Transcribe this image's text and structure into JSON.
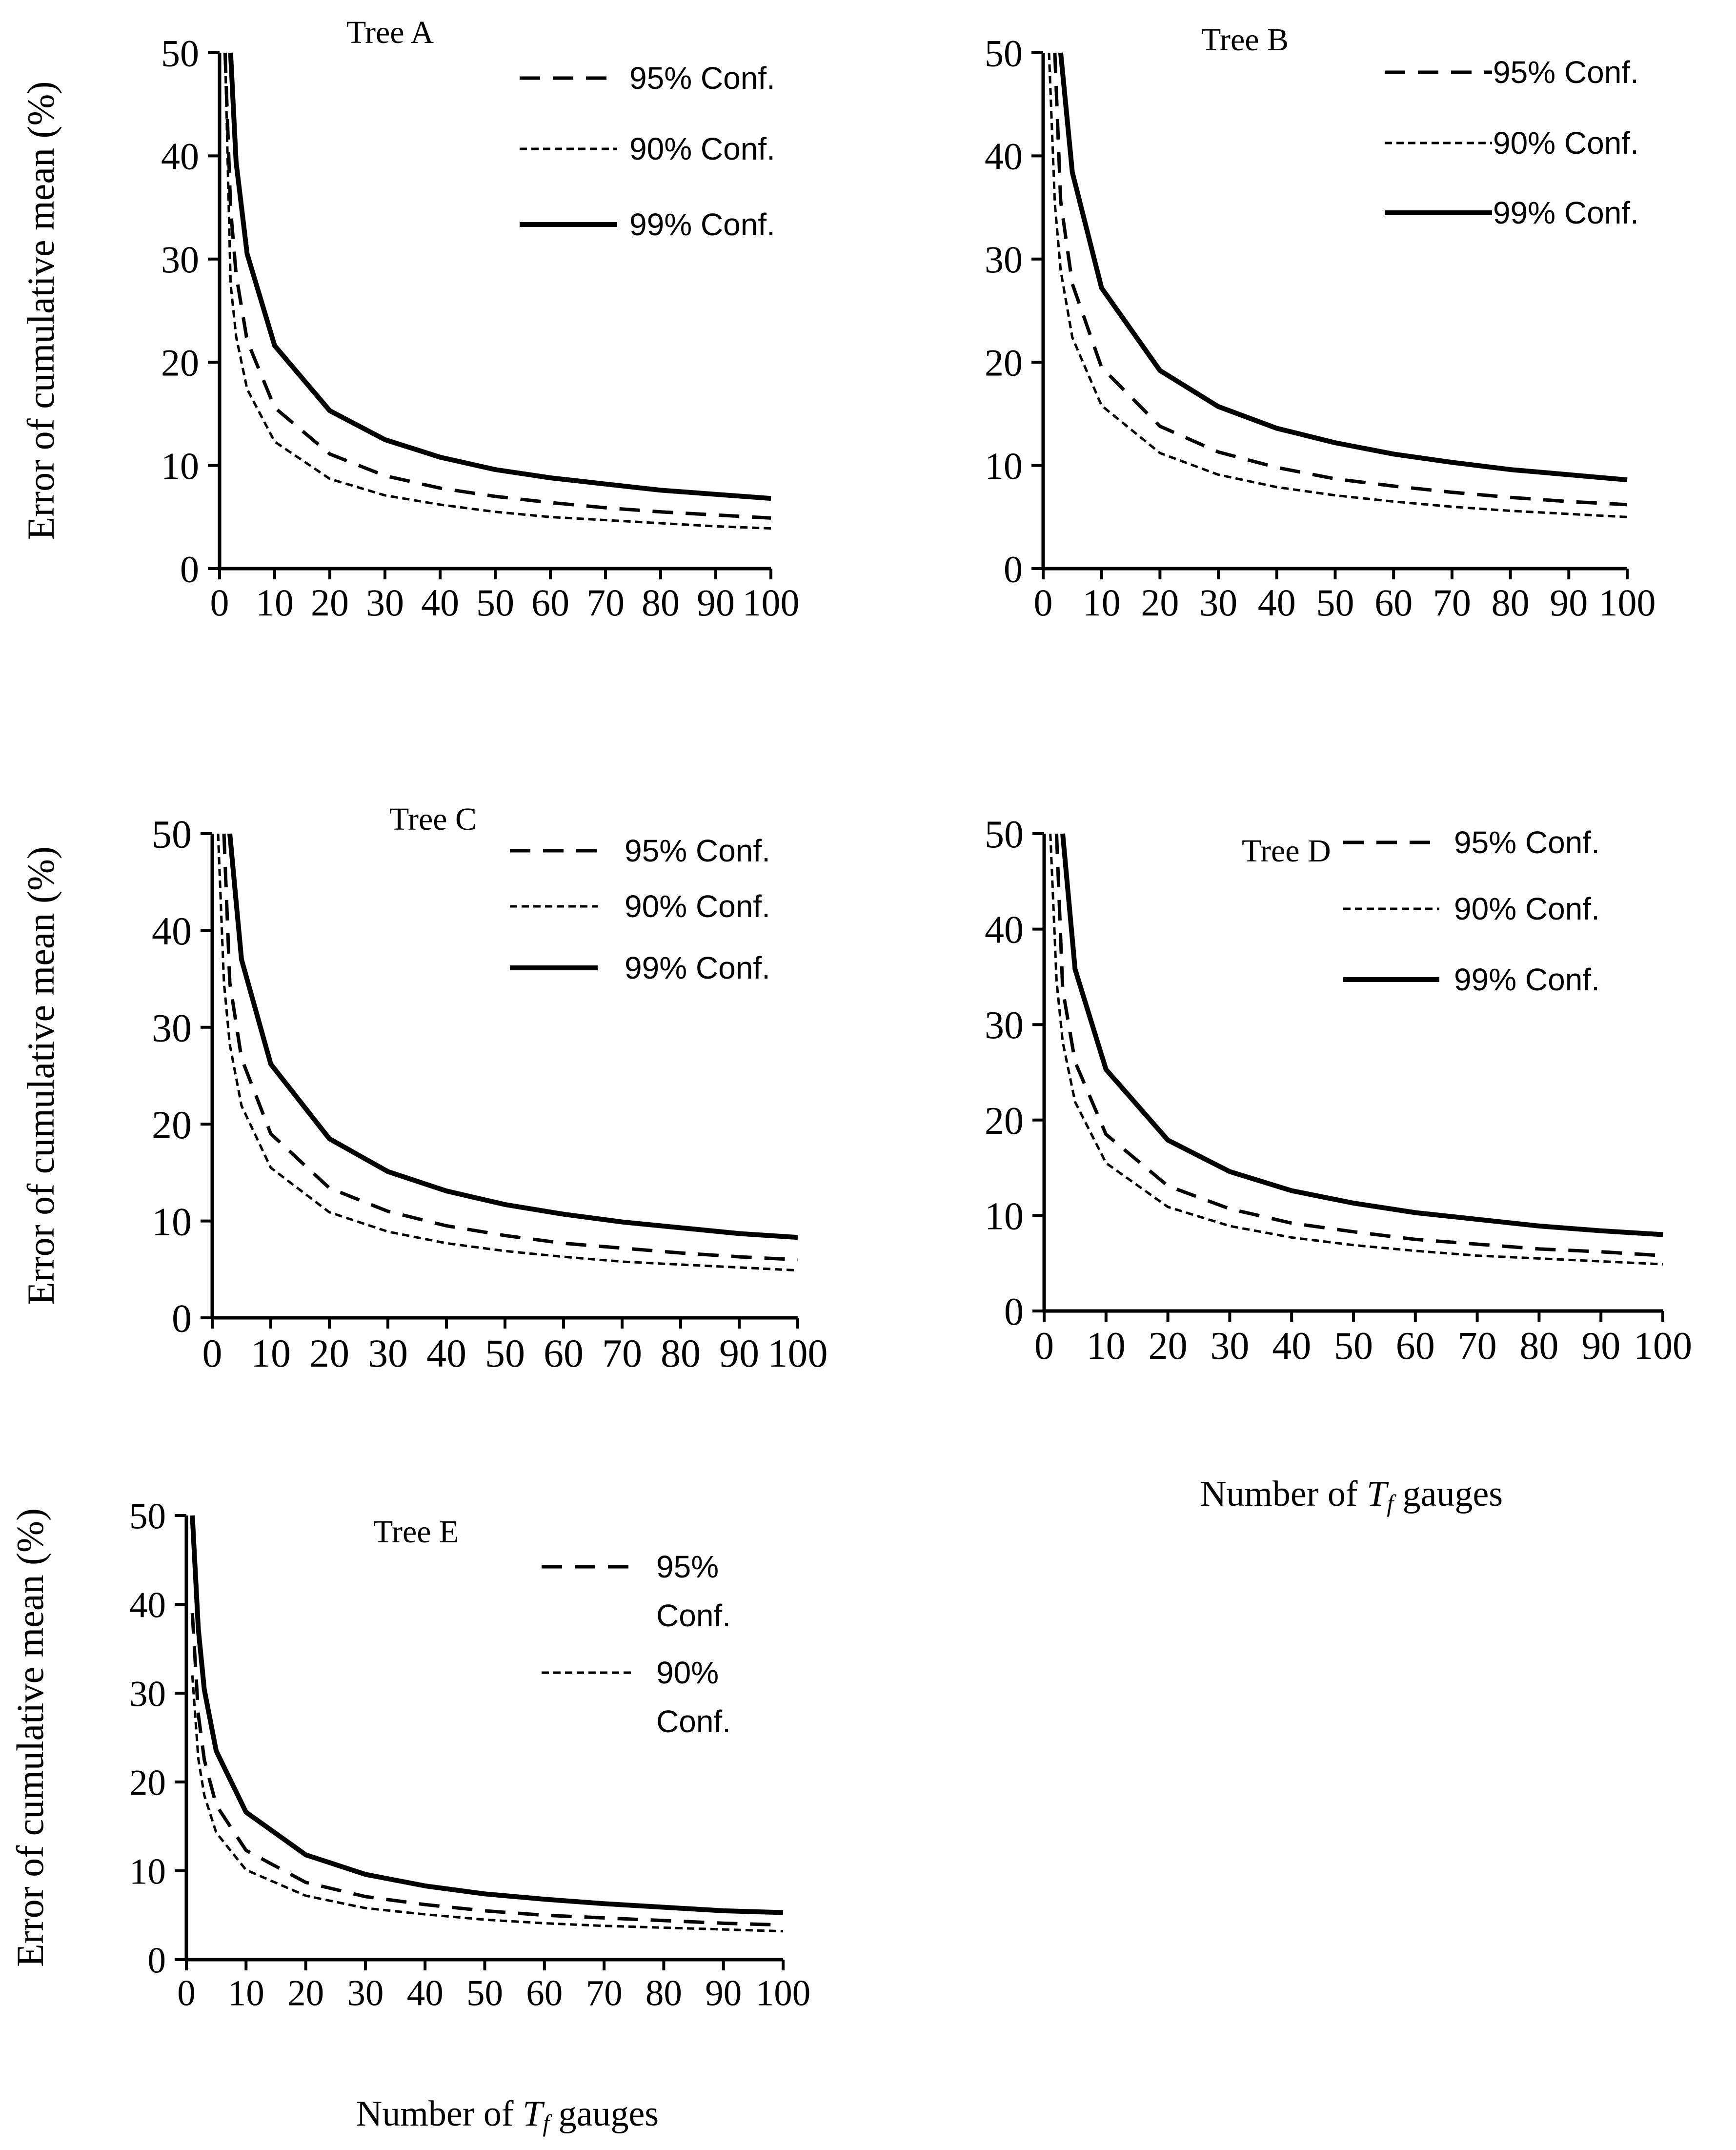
{
  "figure": {
    "xlabel_right_prefix": "Number of ",
    "xlabel_right_var": "T",
    "xlabel_right_sub": "f",
    "xlabel_right_suffix": " gauges",
    "xlabel_bottom_prefix": "Number of ",
    "xlabel_bottom_var": "T",
    "xlabel_bottom_sub": "f",
    "xlabel_bottom_suffix": " gauges"
  },
  "legend_labels": {
    "c95": "95% Conf.",
    "c90": "90% Conf.",
    "c99": "99% Conf.",
    "c95_line1": "95%",
    "c95_line2": "Conf.",
    "c90_line1": "90%",
    "c90_line2": "Conf."
  },
  "chart_data": [
    {
      "type": "line",
      "title": "Tree A",
      "ylabel": "Error of cumulative mean (%)",
      "xlabel": "",
      "xlim": [
        0,
        100
      ],
      "ylim": [
        0,
        50
      ],
      "xticks": [
        "0",
        "10",
        "20",
        "30",
        "40",
        "50",
        "60",
        "70",
        "80",
        "90",
        "100"
      ],
      "yticks": [
        "0",
        "10",
        "20",
        "30",
        "40",
        "50"
      ],
      "legend": "top-right",
      "series": [
        {
          "name": "95% Conf.",
          "style": "dashed",
          "x": [
            1,
            2,
            3,
            5,
            10,
            20,
            30,
            40,
            50,
            60,
            70,
            80,
            90,
            100
          ],
          "y": [
            50,
            34.9,
            28.5,
            22.1,
            15.6,
            11.1,
            9.0,
            7.8,
            7.0,
            6.4,
            5.9,
            5.5,
            5.2,
            4.9
          ]
        },
        {
          "name": "90% Conf.",
          "style": "dotted",
          "x": [
            1,
            2,
            3,
            5,
            10,
            20,
            30,
            40,
            50,
            60,
            70,
            80,
            90,
            100
          ],
          "y": [
            50,
            27.6,
            22.5,
            17.4,
            12.3,
            8.7,
            7.1,
            6.2,
            5.5,
            5.0,
            4.7,
            4.4,
            4.1,
            3.9
          ]
        },
        {
          "name": "99% Conf.",
          "style": "solid",
          "x": [
            2,
            3,
            5,
            10,
            20,
            30,
            40,
            50,
            60,
            70,
            80,
            90,
            100
          ],
          "y": [
            50,
            39.4,
            30.5,
            21.6,
            15.3,
            12.5,
            10.8,
            9.6,
            8.8,
            8.2,
            7.6,
            7.2,
            6.8
          ]
        }
      ]
    },
    {
      "type": "line",
      "title": "Tree B",
      "ylabel": "",
      "xlabel": "",
      "xlim": [
        0,
        100
      ],
      "ylim": [
        0,
        50
      ],
      "xticks": [
        "0",
        "10",
        "20",
        "30",
        "40",
        "50",
        "60",
        "70",
        "80",
        "90",
        "100"
      ],
      "yticks": [
        "0",
        "10",
        "20",
        "30",
        "40",
        "50"
      ],
      "legend": "top-right",
      "series": [
        {
          "name": "95% Conf.",
          "style": "dashed",
          "x": [
            2,
            3,
            5,
            10,
            20,
            30,
            40,
            50,
            60,
            70,
            80,
            90,
            100
          ],
          "y": [
            50,
            35.6,
            27.6,
            19.5,
            13.8,
            11.3,
            9.8,
            8.7,
            8.0,
            7.4,
            6.9,
            6.5,
            6.2
          ]
        },
        {
          "name": "90% Conf.",
          "style": "dotted",
          "x": [
            1,
            2,
            3,
            5,
            10,
            20,
            30,
            40,
            50,
            60,
            70,
            80,
            90,
            100
          ],
          "y": [
            50,
            35.4,
            28.9,
            22.4,
            15.8,
            11.2,
            9.1,
            7.9,
            7.1,
            6.5,
            6.0,
            5.6,
            5.3,
            5.0
          ]
        },
        {
          "name": "99% Conf.",
          "style": "solid",
          "x": [
            3,
            5,
            10,
            20,
            30,
            40,
            50,
            60,
            70,
            80,
            90,
            100
          ],
          "y": [
            50,
            38.4,
            27.2,
            19.2,
            15.7,
            13.6,
            12.2,
            11.1,
            10.3,
            9.6,
            9.1,
            8.6
          ]
        }
      ]
    },
    {
      "type": "line",
      "title": "Tree C",
      "ylabel": "Error of cumulative mean (%)",
      "xlabel": "",
      "xlim": [
        0,
        100
      ],
      "ylim": [
        0,
        50
      ],
      "xticks": [
        "0",
        "10",
        "20",
        "30",
        "40",
        "50",
        "60",
        "70",
        "80",
        "90",
        "100"
      ],
      "yticks": [
        "0",
        "10",
        "20",
        "30",
        "40",
        "50"
      ],
      "legend": "top-right",
      "series": [
        {
          "name": "95% Conf.",
          "style": "dashed",
          "x": [
            2,
            3,
            5,
            10,
            20,
            30,
            40,
            50,
            60,
            70,
            80,
            90,
            100
          ],
          "y": [
            50,
            34.6,
            26.8,
            19.0,
            13.4,
            11.0,
            9.5,
            8.5,
            7.7,
            7.2,
            6.7,
            6.3,
            6.0
          ]
        },
        {
          "name": "90% Conf.",
          "style": "dotted",
          "x": [
            1,
            2,
            3,
            5,
            10,
            20,
            30,
            40,
            50,
            60,
            70,
            80,
            90,
            100
          ],
          "y": [
            50,
            34.6,
            28.2,
            21.9,
            15.5,
            10.9,
            8.9,
            7.7,
            6.9,
            6.3,
            5.8,
            5.5,
            5.2,
            4.9
          ]
        },
        {
          "name": "99% Conf.",
          "style": "solid",
          "x": [
            3,
            5,
            10,
            20,
            30,
            40,
            50,
            60,
            70,
            80,
            90,
            100
          ],
          "y": [
            50,
            37.0,
            26.2,
            18.5,
            15.1,
            13.1,
            11.7,
            10.7,
            9.9,
            9.3,
            8.7,
            8.3
          ]
        }
      ]
    },
    {
      "type": "line",
      "title": "Tree D",
      "ylabel": "",
      "xlabel": "",
      "xlim": [
        0,
        100
      ],
      "ylim": [
        0,
        50
      ],
      "xticks": [
        "0",
        "10",
        "20",
        "30",
        "40",
        "50",
        "60",
        "70",
        "80",
        "90",
        "100"
      ],
      "yticks": [
        "0",
        "10",
        "20",
        "30",
        "40",
        "50"
      ],
      "legend": "top-right",
      "series": [
        {
          "name": "95% Conf.",
          "style": "dashed",
          "x": [
            2,
            3,
            5,
            10,
            20,
            30,
            40,
            50,
            60,
            70,
            80,
            90,
            100
          ],
          "y": [
            50,
            33.7,
            26.1,
            18.5,
            13.1,
            10.7,
            9.2,
            8.3,
            7.5,
            7.0,
            6.5,
            6.2,
            5.8
          ]
        },
        {
          "name": "90% Conf.",
          "style": "dotted",
          "x": [
            1,
            2,
            3,
            5,
            10,
            20,
            30,
            40,
            50,
            60,
            70,
            80,
            90,
            100
          ],
          "y": [
            50,
            34.6,
            28.2,
            21.9,
            15.5,
            10.9,
            8.9,
            7.7,
            6.9,
            6.3,
            5.8,
            5.5,
            5.2,
            4.9
          ]
        },
        {
          "name": "99% Conf.",
          "style": "solid",
          "x": [
            3,
            5,
            10,
            20,
            30,
            40,
            50,
            60,
            70,
            80,
            90,
            100
          ],
          "y": [
            50,
            35.8,
            25.3,
            17.9,
            14.6,
            12.6,
            11.3,
            10.3,
            9.6,
            8.9,
            8.4,
            8.0
          ]
        }
      ]
    },
    {
      "type": "line",
      "title": "Tree E",
      "ylabel": "Error of cumulative mean (%)",
      "xlabel": "Number of Tf gauges",
      "xlim": [
        0,
        100
      ],
      "ylim": [
        0,
        50
      ],
      "xticks": [
        "0",
        "10",
        "20",
        "30",
        "40",
        "50",
        "60",
        "70",
        "80",
        "90",
        "100"
      ],
      "yticks": [
        "0",
        "10",
        "20",
        "30",
        "40",
        "50"
      ],
      "legend": "top-right",
      "series": [
        {
          "name": "95% Conf.",
          "style": "dashed",
          "x": [
            1,
            2,
            3,
            5,
            10,
            20,
            30,
            40,
            50,
            60,
            70,
            80,
            90,
            100
          ],
          "y": [
            39.0,
            27.6,
            22.5,
            17.4,
            12.3,
            8.7,
            7.1,
            6.2,
            5.5,
            5.0,
            4.7,
            4.4,
            4.1,
            3.9
          ]
        },
        {
          "name": "90% Conf.",
          "style": "dotted",
          "x": [
            1,
            2,
            3,
            5,
            10,
            20,
            30,
            40,
            50,
            60,
            70,
            80,
            90,
            100
          ],
          "y": [
            32.0,
            22.6,
            18.5,
            14.3,
            10.1,
            7.2,
            5.8,
            5.1,
            4.5,
            4.1,
            3.8,
            3.6,
            3.4,
            3.2
          ]
        },
        {
          "name": "99% Conf.",
          "style": "solid",
          "x": [
            1,
            2,
            3,
            5,
            10,
            20,
            30,
            40,
            50,
            60,
            70,
            80,
            90,
            100
          ],
          "y": [
            50,
            37.2,
            30.4,
            23.5,
            16.6,
            11.8,
            9.6,
            8.3,
            7.4,
            6.8,
            6.3,
            5.9,
            5.5,
            5.3
          ]
        }
      ]
    }
  ]
}
